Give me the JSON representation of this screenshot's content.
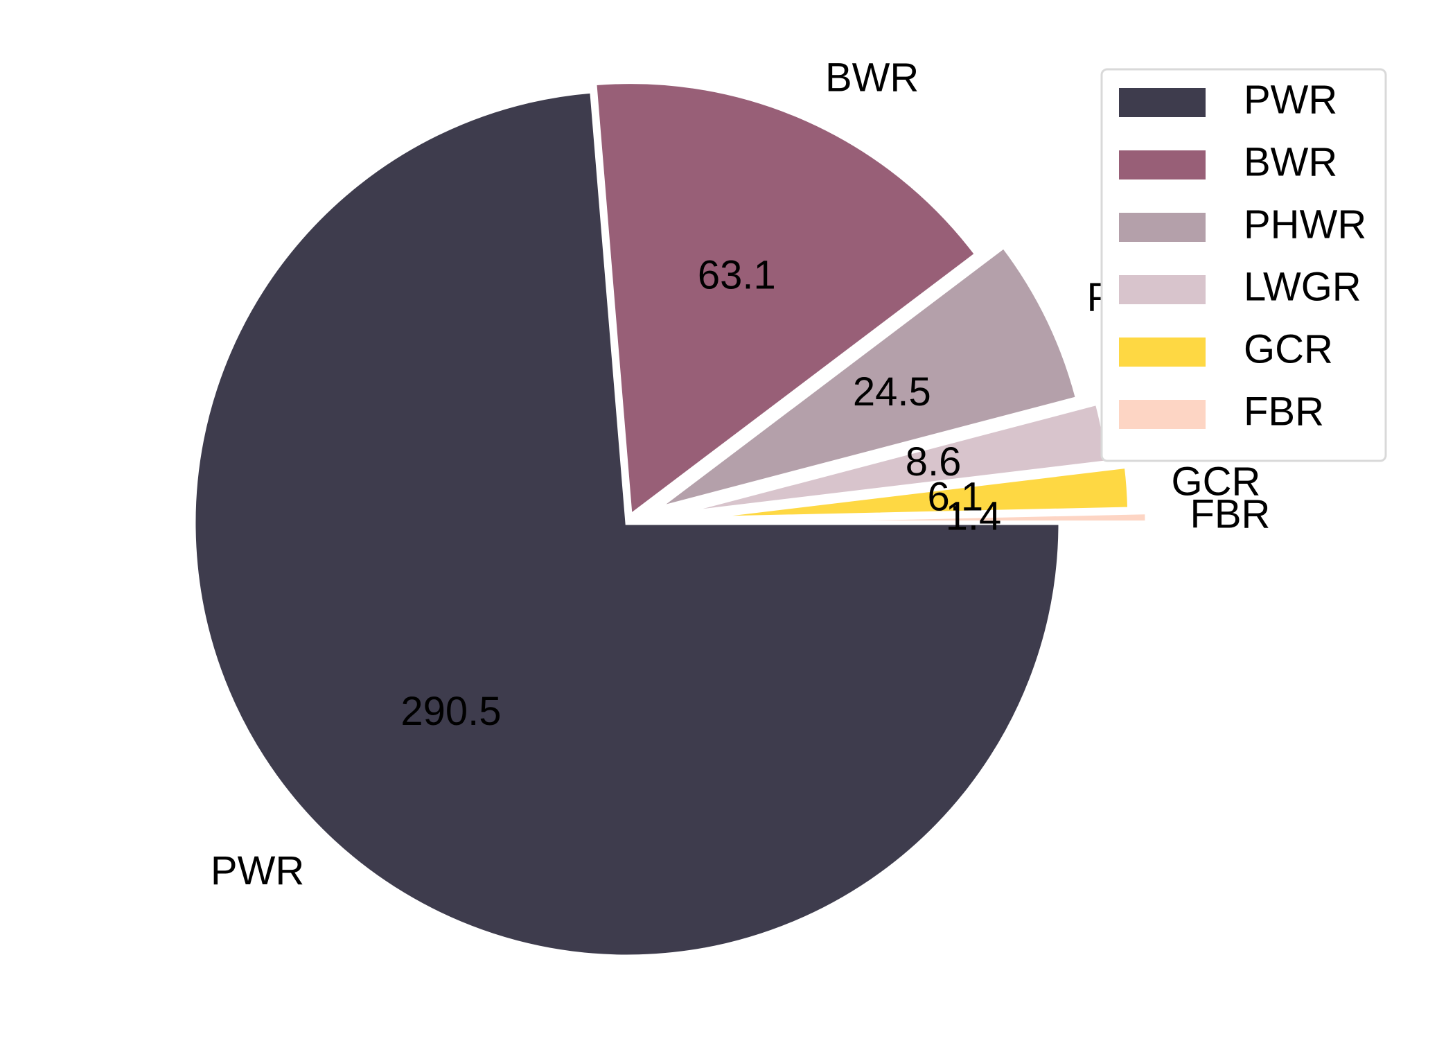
{
  "chart_data": {
    "type": "pie",
    "categories": [
      "PWR",
      "BWR",
      "PHWR",
      "LWGR",
      "GCR",
      "FBR"
    ],
    "values": [
      290.5,
      63.1,
      24.5,
      8.6,
      6.1,
      1.4
    ],
    "value_labels": [
      "290.5",
      "63.1",
      "24.5",
      "8.6",
      "6.1",
      "1.4"
    ],
    "colors": [
      "#3e3c4d",
      "#985f77",
      "#b4a0aa",
      "#d8c4cc",
      "#fed843",
      "#fdd5c4"
    ],
    "explode": [
      0,
      0.02,
      0.08,
      0.12,
      0.16,
      0.2
    ],
    "start_angle_deg": 0,
    "direction": "clockwise",
    "title": "",
    "legend": {
      "placement": "upper-right",
      "entries": [
        "PWR",
        "BWR",
        "PHWR",
        "LWGR",
        "GCR",
        "FBR"
      ]
    }
  }
}
